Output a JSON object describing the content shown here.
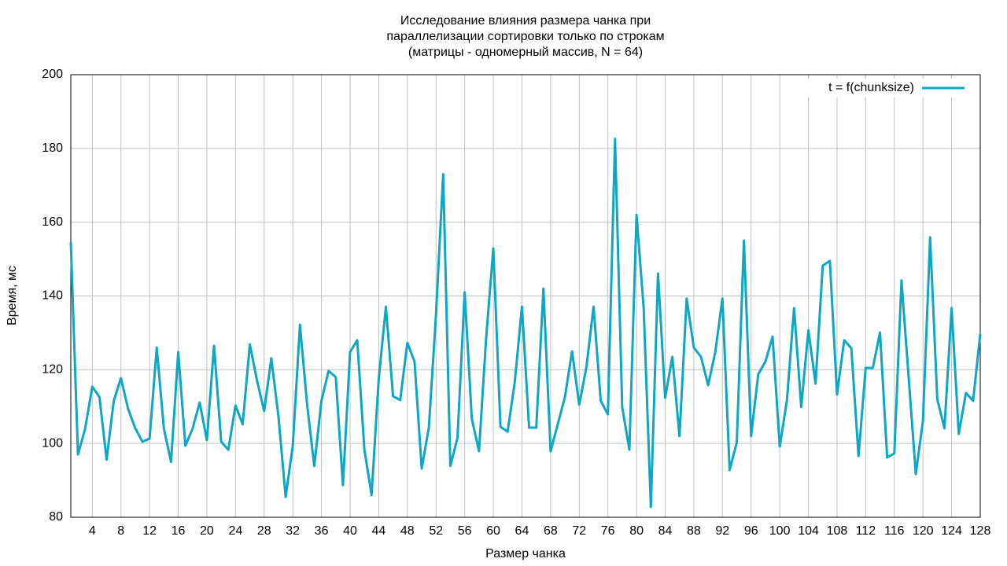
{
  "chart_data": {
    "type": "line",
    "title": [
      "Исследование влияния размера чанка при",
      "параллелизации сортировки только по строкам",
      "(матрицы - одномерный массив, N = 64)"
    ],
    "x_label": "Размер чанка",
    "y_label": "Время, мс",
    "x": [
      1,
      2,
      3,
      4,
      5,
      6,
      7,
      8,
      9,
      10,
      11,
      12,
      13,
      14,
      15,
      16,
      17,
      18,
      19,
      20,
      21,
      22,
      23,
      24,
      25,
      26,
      27,
      28,
      29,
      30,
      31,
      32,
      33,
      34,
      35,
      36,
      37,
      38,
      39,
      40,
      41,
      42,
      43,
      44,
      45,
      46,
      47,
      48,
      49,
      50,
      51,
      52,
      53,
      54,
      55,
      56,
      57,
      58,
      59,
      60,
      61,
      62,
      63,
      64,
      65,
      66,
      67,
      68,
      69,
      70,
      71,
      72,
      73,
      74,
      75,
      76,
      77,
      78,
      79,
      80,
      81,
      82,
      83,
      84,
      85,
      86,
      87,
      88,
      89,
      90,
      91,
      92,
      93,
      94,
      95,
      96,
      97,
      98,
      99,
      100,
      101,
      102,
      103,
      104,
      105,
      106,
      107,
      108,
      109,
      110,
      111,
      112,
      113,
      114,
      115,
      116,
      117,
      118,
      119,
      120,
      121,
      122,
      123,
      124,
      125,
      126,
      127,
      128
    ],
    "series": [
      {
        "name": "t = f(chunksize)",
        "color": "#0ca6c6",
        "values": [
          154.6,
          97,
          104,
          115.4,
          112.6,
          95.6,
          111.6,
          117.7,
          109.4,
          104.1,
          100.5,
          101.3,
          126,
          104,
          95,
          124.8,
          99.4,
          104,
          111.1,
          100.9,
          126.5,
          100.5,
          98.3,
          110.3,
          105.2,
          126.9,
          117.1,
          108.8,
          123.1,
          107.3,
          85.5,
          99.4,
          132.2,
          110.5,
          93.9,
          111.6,
          119.7,
          118,
          88.7,
          124.8,
          128,
          98.3,
          86,
          117.5,
          137.1,
          112.8,
          111.8,
          127.3,
          122.2,
          93.2,
          104.3,
          135,
          173,
          93.9,
          101.5,
          141,
          106.7,
          97.9,
          128.6,
          152.9,
          104.5,
          103.2,
          116.7,
          137.1,
          104.3,
          104.3,
          142,
          97.9,
          105.2,
          112.6,
          125,
          110.5,
          120.7,
          137.1,
          111.6,
          107.9,
          182.6,
          109.9,
          98.3,
          162,
          136.7,
          82.8,
          146.1,
          112.4,
          123.5,
          102,
          139.3,
          126,
          123.5,
          115.8,
          124.8,
          139.3,
          92.8,
          100.3,
          155,
          102,
          118.8,
          122.2,
          129,
          99.2,
          111.6,
          136.7,
          109.9,
          130.7,
          116.2,
          148.2,
          149.5,
          113.3,
          128,
          125.8,
          96.6,
          120.5,
          120.5,
          130.1,
          96.2,
          97.3,
          144.2,
          118,
          91.7,
          106.2,
          155.9,
          112,
          104.1,
          136.7,
          102.6,
          113.7,
          111.6,
          129.7
        ]
      }
    ],
    "xlim": [
      1,
      128
    ],
    "xticks": [
      4,
      8,
      12,
      16,
      20,
      24,
      28,
      32,
      36,
      40,
      44,
      48,
      52,
      56,
      60,
      64,
      68,
      72,
      76,
      80,
      84,
      88,
      92,
      96,
      100,
      104,
      108,
      112,
      116,
      120,
      124,
      128
    ],
    "ylim": [
      80,
      200
    ],
    "yticks": [
      80,
      100,
      120,
      140,
      160,
      180,
      200
    ],
    "grid": true,
    "legend_position": "top-right"
  }
}
